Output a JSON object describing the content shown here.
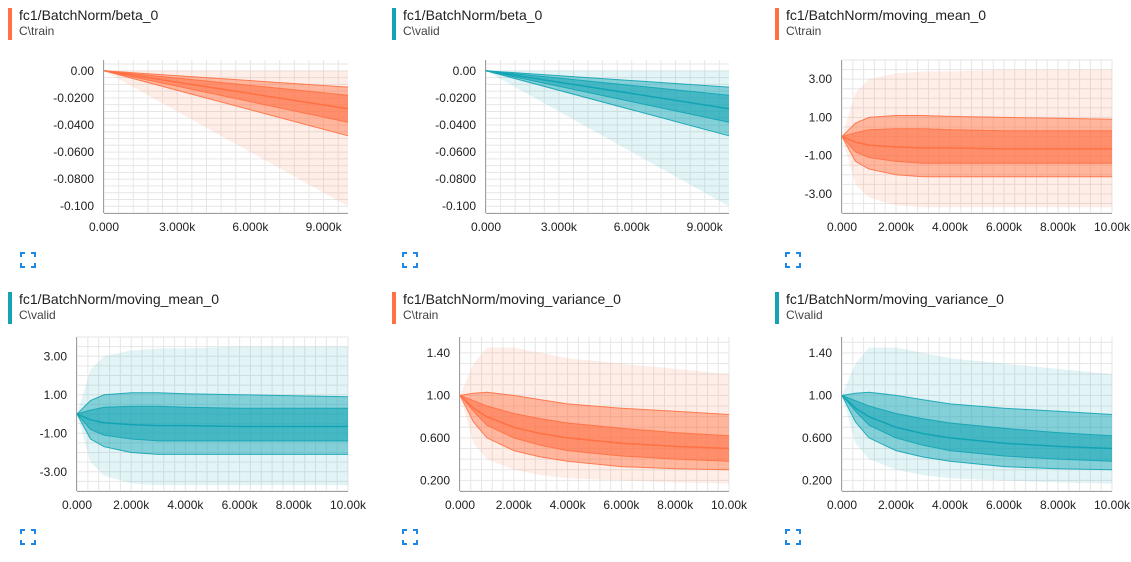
{
  "colors": {
    "train": "#ff7043",
    "valid": "#12a4b4",
    "expand_icon": "#1e88e5"
  },
  "cards": [
    {
      "title": "fc1/BatchNorm/beta_0",
      "run": "C\\train",
      "color_key": "train",
      "expand_icon": "fullscreen-icon",
      "chart_data": {
        "type": "area",
        "xlim": [
          0,
          10000
        ],
        "ylim": [
          -0.105,
          0.008
        ],
        "xticks": [
          0,
          3000,
          6000,
          9000
        ],
        "xtick_labels": [
          "0.000",
          "3.000k",
          "6.000k",
          "9.000k"
        ],
        "yticks": [
          0,
          -0.02,
          -0.04,
          -0.06,
          -0.08,
          -0.1
        ],
        "ytick_labels": [
          "0.00",
          "-0.0200",
          "-0.0400",
          "-0.0600",
          "-0.0800",
          "-0.100"
        ],
        "x": [
          0,
          10000
        ],
        "bands": [
          {
            "band": "outer",
            "lower": [
              0,
              -0.1
            ],
            "upper": [
              0,
              0
            ]
          },
          {
            "band": "mid",
            "lower": [
              0,
              -0.048
            ],
            "upper": [
              0,
              -0.012
            ]
          },
          {
            "band": "inner",
            "lower": [
              0,
              -0.038
            ],
            "upper": [
              0,
              -0.018
            ]
          }
        ],
        "median": [
          0,
          -0.028
        ]
      }
    },
    {
      "title": "fc1/BatchNorm/beta_0",
      "run": "C\\valid",
      "color_key": "valid",
      "expand_icon": "fullscreen-icon",
      "chart_data": {
        "type": "area",
        "xlim": [
          0,
          10000
        ],
        "ylim": [
          -0.105,
          0.008
        ],
        "xticks": [
          0,
          3000,
          6000,
          9000
        ],
        "xtick_labels": [
          "0.000",
          "3.000k",
          "6.000k",
          "9.000k"
        ],
        "yticks": [
          0,
          -0.02,
          -0.04,
          -0.06,
          -0.08,
          -0.1
        ],
        "ytick_labels": [
          "0.00",
          "-0.0200",
          "-0.0400",
          "-0.0600",
          "-0.0800",
          "-0.100"
        ],
        "x": [
          0,
          10000
        ],
        "bands": [
          {
            "band": "outer",
            "lower": [
              0,
              -0.1
            ],
            "upper": [
              0,
              0
            ]
          },
          {
            "band": "mid",
            "lower": [
              0,
              -0.048
            ],
            "upper": [
              0,
              -0.012
            ]
          },
          {
            "band": "inner",
            "lower": [
              0,
              -0.038
            ],
            "upper": [
              0,
              -0.018
            ]
          }
        ],
        "median": [
          0,
          -0.028
        ]
      }
    },
    {
      "title": "fc1/BatchNorm/moving_mean_0",
      "run": "C\\train",
      "color_key": "train",
      "expand_icon": "fullscreen-icon",
      "chart_data": {
        "type": "area",
        "xlim": [
          0,
          10000
        ],
        "ylim": [
          -4,
          4
        ],
        "xticks": [
          0,
          2000,
          4000,
          6000,
          8000,
          10000
        ],
        "xtick_labels": [
          "0.000",
          "2.000k",
          "4.000k",
          "6.000k",
          "8.000k",
          "10.00k"
        ],
        "yticks": [
          3,
          1,
          -1,
          -3
        ],
        "ytick_labels": [
          "3.00",
          "1.00",
          "-1.00",
          "-3.00"
        ],
        "x": [
          0,
          500,
          1000,
          2000,
          3000,
          4000,
          6000,
          8000,
          10000
        ],
        "bands": [
          {
            "band": "outer",
            "lower": [
              0,
              -2.5,
              -3.2,
              -3.6,
              -3.7,
              -3.7,
              -3.7,
              -3.7,
              -3.7
            ],
            "upper": [
              0,
              2.3,
              3,
              3.3,
              3.4,
              3.4,
              3.5,
              3.5,
              3.5
            ]
          },
          {
            "band": "mid",
            "lower": [
              0,
              -1.3,
              -1.7,
              -2,
              -2.1,
              -2.1,
              -2.1,
              -2.1,
              -2.1
            ],
            "upper": [
              0,
              0.7,
              1,
              1.1,
              1.1,
              1.05,
              1,
              0.95,
              0.9
            ]
          },
          {
            "band": "inner",
            "lower": [
              0,
              -0.8,
              -1.1,
              -1.3,
              -1.4,
              -1.4,
              -1.4,
              -1.4,
              -1.4
            ],
            "upper": [
              0,
              0.2,
              0.35,
              0.4,
              0.4,
              0.35,
              0.3,
              0.3,
              0.3
            ]
          }
        ],
        "median": [
          0,
          -0.3,
          -0.45,
          -0.55,
          -0.6,
          -0.6,
          -0.65,
          -0.65,
          -0.65
        ]
      }
    },
    {
      "title": "fc1/BatchNorm/moving_mean_0",
      "run": "C\\valid",
      "color_key": "valid",
      "expand_icon": "fullscreen-icon",
      "chart_data": {
        "type": "area",
        "xlim": [
          0,
          10000
        ],
        "ylim": [
          -4,
          4
        ],
        "xticks": [
          0,
          2000,
          4000,
          6000,
          8000,
          10000
        ],
        "xtick_labels": [
          "0.000",
          "2.000k",
          "4.000k",
          "6.000k",
          "8.000k",
          "10.00k"
        ],
        "yticks": [
          3,
          1,
          -1,
          -3
        ],
        "ytick_labels": [
          "3.00",
          "1.00",
          "-1.00",
          "-3.00"
        ],
        "x": [
          0,
          500,
          1000,
          2000,
          3000,
          4000,
          6000,
          8000,
          10000
        ],
        "bands": [
          {
            "band": "outer",
            "lower": [
              0,
              -2.5,
              -3.2,
              -3.6,
              -3.7,
              -3.7,
              -3.7,
              -3.7,
              -3.7
            ],
            "upper": [
              0,
              2.3,
              3,
              3.3,
              3.4,
              3.4,
              3.5,
              3.5,
              3.5
            ]
          },
          {
            "band": "mid",
            "lower": [
              0,
              -1.3,
              -1.7,
              -2,
              -2.1,
              -2.1,
              -2.1,
              -2.1,
              -2.1
            ],
            "upper": [
              0,
              0.7,
              1,
              1.1,
              1.1,
              1.05,
              1,
              0.95,
              0.9
            ]
          },
          {
            "band": "inner",
            "lower": [
              0,
              -0.8,
              -1.1,
              -1.3,
              -1.4,
              -1.4,
              -1.4,
              -1.4,
              -1.4
            ],
            "upper": [
              0,
              0.2,
              0.35,
              0.4,
              0.4,
              0.35,
              0.3,
              0.3,
              0.3
            ]
          }
        ],
        "median": [
          0,
          -0.3,
          -0.45,
          -0.55,
          -0.6,
          -0.6,
          -0.65,
          -0.65,
          -0.65
        ]
      }
    },
    {
      "title": "fc1/BatchNorm/moving_variance_0",
      "run": "C\\train",
      "color_key": "train",
      "expand_icon": "fullscreen-icon",
      "chart_data": {
        "type": "area",
        "xlim": [
          0,
          10000
        ],
        "ylim": [
          0.1,
          1.55
        ],
        "xticks": [
          0,
          2000,
          4000,
          6000,
          8000,
          10000
        ],
        "xtick_labels": [
          "0.000",
          "2.000k",
          "4.000k",
          "6.000k",
          "8.000k",
          "10.00k"
        ],
        "yticks": [
          1.4,
          1,
          0.6,
          0.2
        ],
        "ytick_labels": [
          "1.40",
          "1.00",
          "0.600",
          "0.200"
        ],
        "x": [
          0,
          500,
          1000,
          2000,
          3000,
          4000,
          6000,
          8000,
          10000
        ],
        "bands": [
          {
            "band": "outer",
            "lower": [
              1,
              0.55,
              0.4,
              0.3,
              0.25,
              0.22,
              0.2,
              0.18,
              0.17
            ],
            "upper": [
              1,
              1.3,
              1.45,
              1.45,
              1.4,
              1.35,
              1.3,
              1.25,
              1.2
            ]
          },
          {
            "band": "mid",
            "lower": [
              1,
              0.75,
              0.6,
              0.48,
              0.42,
              0.38,
              0.33,
              0.31,
              0.3
            ],
            "upper": [
              1,
              1.02,
              1.03,
              1,
              0.96,
              0.92,
              0.88,
              0.85,
              0.82
            ]
          },
          {
            "band": "inner",
            "lower": [
              1,
              0.85,
              0.72,
              0.6,
              0.53,
              0.48,
              0.43,
              0.4,
              0.38
            ],
            "upper": [
              1,
              0.95,
              0.9,
              0.83,
              0.78,
              0.74,
              0.69,
              0.65,
              0.62
            ]
          }
        ],
        "median": [
          1,
          0.88,
          0.8,
          0.7,
          0.64,
          0.6,
          0.55,
          0.52,
          0.5
        ]
      }
    },
    {
      "title": "fc1/BatchNorm/moving_variance_0",
      "run": "C\\valid",
      "color_key": "valid",
      "expand_icon": "fullscreen-icon",
      "chart_data": {
        "type": "area",
        "xlim": [
          0,
          10000
        ],
        "ylim": [
          0.1,
          1.55
        ],
        "xticks": [
          0,
          2000,
          4000,
          6000,
          8000,
          10000
        ],
        "xtick_labels": [
          "0.000",
          "2.000k",
          "4.000k",
          "6.000k",
          "8.000k",
          "10.00k"
        ],
        "yticks": [
          1.4,
          1,
          0.6,
          0.2
        ],
        "ytick_labels": [
          "1.40",
          "1.00",
          "0.600",
          "0.200"
        ],
        "x": [
          0,
          500,
          1000,
          2000,
          3000,
          4000,
          6000,
          8000,
          10000
        ],
        "bands": [
          {
            "band": "outer",
            "lower": [
              1,
              0.55,
              0.4,
              0.3,
              0.25,
              0.22,
              0.2,
              0.18,
              0.17
            ],
            "upper": [
              1,
              1.3,
              1.45,
              1.45,
              1.4,
              1.35,
              1.3,
              1.25,
              1.2
            ]
          },
          {
            "band": "mid",
            "lower": [
              1,
              0.75,
              0.6,
              0.48,
              0.42,
              0.38,
              0.33,
              0.31,
              0.3
            ],
            "upper": [
              1,
              1.02,
              1.03,
              1,
              0.96,
              0.92,
              0.88,
              0.85,
              0.82
            ]
          },
          {
            "band": "inner",
            "lower": [
              1,
              0.85,
              0.72,
              0.6,
              0.53,
              0.48,
              0.43,
              0.4,
              0.38
            ],
            "upper": [
              1,
              0.95,
              0.9,
              0.83,
              0.78,
              0.74,
              0.69,
              0.65,
              0.62
            ]
          }
        ],
        "median": [
          1,
          0.88,
          0.8,
          0.7,
          0.64,
          0.6,
          0.55,
          0.52,
          0.5
        ]
      }
    }
  ]
}
